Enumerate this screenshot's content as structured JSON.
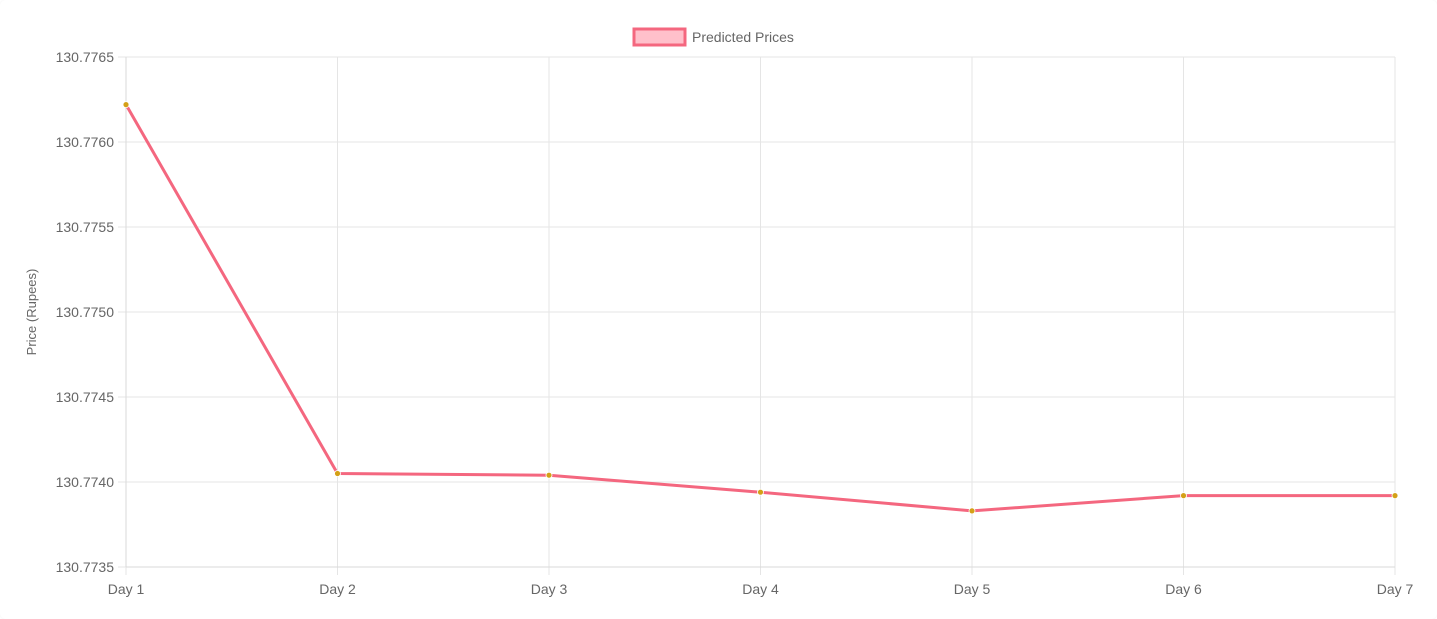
{
  "chart_data": {
    "type": "line",
    "categories": [
      "Day 1",
      "Day 2",
      "Day 3",
      "Day 4",
      "Day 5",
      "Day 6",
      "Day 7"
    ],
    "series": [
      {
        "name": "Predicted Prices",
        "values": [
          130.77622,
          130.77405,
          130.77404,
          130.77394,
          130.77383,
          130.77392,
          130.77392
        ]
      }
    ],
    "ylabel": "Price (Rupees)",
    "xlabel": "",
    "ylim": [
      130.7735,
      130.7765
    ],
    "yticks": [
      "130.7735",
      "130.7740",
      "130.7745",
      "130.7750",
      "130.7755",
      "130.7760",
      "130.7765"
    ],
    "grid": true,
    "legend_position": "top-center",
    "colors": {
      "line": "#f4677f",
      "point": "#d4a017",
      "legend_fill": "#ffc0cb"
    }
  }
}
